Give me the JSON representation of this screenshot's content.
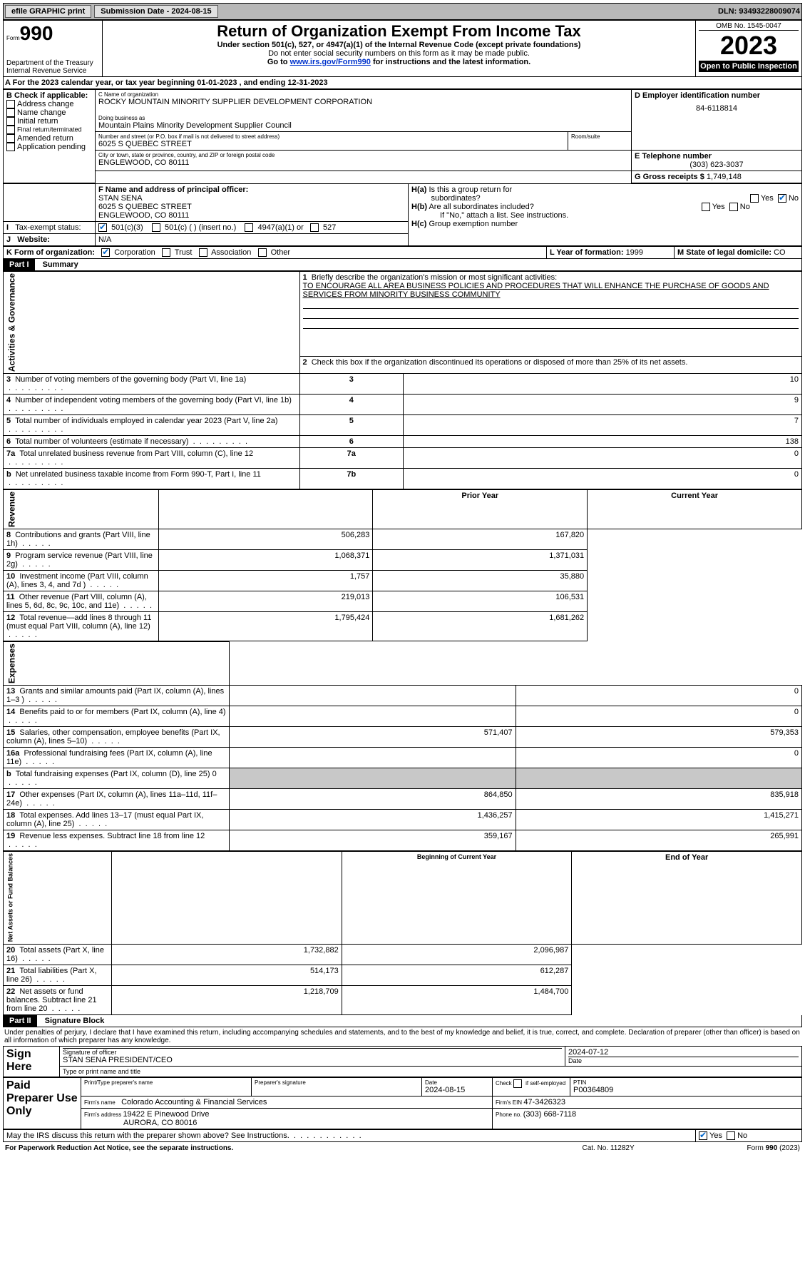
{
  "topbar": {
    "efile": "efile GRAPHIC print",
    "submission_label": "Submission Date - ",
    "submission_date": "2024-08-15",
    "dln_label": "DLN: ",
    "dln": "93493228009074"
  },
  "header": {
    "form_label": "Form",
    "form_num": "990",
    "dept": "Department of the Treasury\nInternal Revenue Service",
    "title": "Return of Organization Exempt From Income Tax",
    "sub1": "Under section 501(c), 527, or 4947(a)(1) of the Internal Revenue Code (except private foundations)",
    "sub2": "Do not enter social security numbers on this form as it may be made public.",
    "sub3_pre": "Go to ",
    "sub3_link": "www.irs.gov/Form990",
    "sub3_post": " for instructions and the latest information.",
    "omb": "OMB No. 1545-0047",
    "year": "2023",
    "open": "Open to Public Inspection"
  },
  "A": {
    "text": "For the 2023 calendar year, or tax year beginning ",
    "begin": "01-01-2023",
    "mid": " , and ending ",
    "end": "12-31-2023"
  },
  "B": {
    "label": "B Check if applicable:",
    "opts": [
      "Address change",
      "Name change",
      "Initial return",
      "Final return/terminated",
      "Amended return",
      "Application pending"
    ]
  },
  "C": {
    "name_label": "C Name of organization",
    "name": "ROCKY MOUNTAIN MINORITY SUPPLIER DEVELOPMENT CORPORATION",
    "dba_label": "Doing business as",
    "dba": "Mountain Plains Minority Development Supplier Council",
    "street_label": "Number and street (or P.O. box if mail is not delivered to street address)",
    "street": "6025 S QUEBEC STREET",
    "room_label": "Room/suite",
    "city_label": "City or town, state or province, country, and ZIP or foreign postal code",
    "city": "ENGLEWOOD, CO  80111"
  },
  "D": {
    "label": "D Employer identification number",
    "val": "84-6118814"
  },
  "E": {
    "label": "E Telephone number",
    "val": "(303) 623-3037"
  },
  "G": {
    "label": "G Gross receipts $ ",
    "val": "1,749,148"
  },
  "F": {
    "label": "F  Name and address of principal officer:",
    "name": "STAN SENA",
    "addr1": "6025 S QUEBEC STREET",
    "addr2": "ENGLEWOOD, CO  80111"
  },
  "H": {
    "a_label": "H(a)  Is this a group return for subordinates?",
    "b_label": "H(b)  Are all subordinates included?",
    "note": "If \"No,\" attach a list. See instructions.",
    "c_label": "H(c)  Group exemption number  ",
    "yes": "Yes",
    "no": "No"
  },
  "I": {
    "label": "Tax-exempt status:",
    "o1": "501(c)(3)",
    "o2": "501(c) (   ) (insert no.)",
    "o3": "4947(a)(1) or",
    "o4": "527"
  },
  "J": {
    "label": "Website:",
    "val": "N/A"
  },
  "K": {
    "label": "K Form of organization:",
    "o1": "Corporation",
    "o2": "Trust",
    "o3": "Association",
    "o4": "Other"
  },
  "L": {
    "label": "L Year of formation: ",
    "val": "1999"
  },
  "M": {
    "label": "M State of legal domicile: ",
    "val": "CO"
  },
  "part1": {
    "bar": "Part I",
    "title": "Summary",
    "l1_label": "Briefly describe the organization's mission or most significant activities:",
    "l1_text": "TO ENCOURAGE ALL AREA BUSINESS POLICIES AND PROCEDURES THAT WILL ENHANCE THE PURCHASE OF GOODS AND SERVICES FROM MINORITY BUSINESS COMMUNITY",
    "l2": "Check this box        if the organization discontinued its operations or disposed of more than 25% of its net assets.",
    "left_label": "Activities & Governance",
    "rows_ag": [
      {
        "n": "3",
        "t": "Number of voting members of the governing body (Part VI, line 1a)",
        "box": "3",
        "v": "10"
      },
      {
        "n": "4",
        "t": "Number of independent voting members of the governing body (Part VI, line 1b)",
        "box": "4",
        "v": "9"
      },
      {
        "n": "5",
        "t": "Total number of individuals employed in calendar year 2023 (Part V, line 2a)",
        "box": "5",
        "v": "7"
      },
      {
        "n": "6",
        "t": "Total number of volunteers (estimate if necessary)",
        "box": "6",
        "v": "138"
      },
      {
        "n": "7a",
        "t": "Total unrelated business revenue from Part VIII, column (C), line 12",
        "box": "7a",
        "v": "0"
      },
      {
        "n": "b",
        "t": "Net unrelated business taxable income from Form 990-T, Part I, line 11",
        "box": "7b",
        "v": "0"
      }
    ],
    "hdr_prior": "Prior Year",
    "hdr_curr": "Current Year",
    "rev_label": "Revenue",
    "rows_rev": [
      {
        "n": "8",
        "t": "Contributions and grants (Part VIII, line 1h)",
        "p": "506,283",
        "c": "167,820"
      },
      {
        "n": "9",
        "t": "Program service revenue (Part VIII, line 2g)",
        "p": "1,068,371",
        "c": "1,371,031"
      },
      {
        "n": "10",
        "t": "Investment income (Part VIII, column (A), lines 3, 4, and 7d )",
        "p": "1,757",
        "c": "35,880"
      },
      {
        "n": "11",
        "t": "Other revenue (Part VIII, column (A), lines 5, 6d, 8c, 9c, 10c, and 11e)",
        "p": "219,013",
        "c": "106,531"
      },
      {
        "n": "12",
        "t": "Total revenue—add lines 8 through 11 (must equal Part VIII, column (A), line 12)",
        "p": "1,795,424",
        "c": "1,681,262"
      }
    ],
    "exp_label": "Expenses",
    "rows_exp": [
      {
        "n": "13",
        "t": "Grants and similar amounts paid (Part IX, column (A), lines 1–3 )",
        "p": "",
        "c": "0"
      },
      {
        "n": "14",
        "t": "Benefits paid to or for members (Part IX, column (A), line 4)",
        "p": "",
        "c": "0"
      },
      {
        "n": "15",
        "t": "Salaries, other compensation, employee benefits (Part IX, column (A), lines 5–10)",
        "p": "571,407",
        "c": "579,353"
      },
      {
        "n": "16a",
        "t": "Professional fundraising fees (Part IX, column (A), line 11e)",
        "p": "",
        "c": "0"
      },
      {
        "n": "b",
        "t": "Total fundraising expenses (Part IX, column (D), line 25) 0",
        "p": "SHADE",
        "c": "SHADE"
      },
      {
        "n": "17",
        "t": "Other expenses (Part IX, column (A), lines 11a–11d, 11f–24e)",
        "p": "864,850",
        "c": "835,918"
      },
      {
        "n": "18",
        "t": "Total expenses. Add lines 13–17 (must equal Part IX, column (A), line 25)",
        "p": "1,436,257",
        "c": "1,415,271"
      },
      {
        "n": "19",
        "t": "Revenue less expenses. Subtract line 18 from line 12",
        "p": "359,167",
        "c": "265,991"
      }
    ],
    "na_label": "Net Assets or Fund Balances",
    "hdr_beg": "Beginning of Current Year",
    "hdr_end": "End of Year",
    "rows_na": [
      {
        "n": "20",
        "t": "Total assets (Part X, line 16)",
        "p": "1,732,882",
        "c": "2,096,987"
      },
      {
        "n": "21",
        "t": "Total liabilities (Part X, line 26)",
        "p": "514,173",
        "c": "612,287"
      },
      {
        "n": "22",
        "t": "Net assets or fund balances. Subtract line 21 from line 20",
        "p": "1,218,709",
        "c": "1,484,700"
      }
    ]
  },
  "part2": {
    "bar": "Part II",
    "title": "Signature Block",
    "decl": "Under penalties of perjury, I declare that I have examined this return, including accompanying schedules and statements, and to the best of my knowledge and belief, it is true, correct, and complete. Declaration of preparer (other than officer) is based on all information of which preparer has any knowledge.",
    "sign_here": "Sign Here",
    "sig_label": "Signature of officer",
    "sig_name": "STAN SENA  PRESIDENT/CEO",
    "sig_title_label": "Type or print name and title",
    "date_label": "Date",
    "date": "2024-07-12",
    "paid": "Paid Preparer Use Only",
    "p_name_label": "Print/Type preparer's name",
    "p_sig_label": "Preparer's signature",
    "p_date_label": "Date",
    "p_date": "2024-08-15",
    "p_check_label": "Check         if self-employed",
    "ptin_label": "PTIN",
    "ptin": "P00364809",
    "firm_name_label": "Firm's name   ",
    "firm_name": "Colorado Accounting & Financial Services",
    "firm_ein_label": "Firm's EIN  ",
    "firm_ein": "47-3426323",
    "firm_addr_label": "Firm's address ",
    "firm_addr1": "19422 E Pinewood Drive",
    "firm_addr2": "AURORA, CO  80016",
    "phone_label": "Phone no. ",
    "phone": "(303) 668-7118",
    "discuss": "May the IRS discuss this return with the preparer shown above? See Instructions.",
    "yes": "Yes",
    "no": "No"
  },
  "footer": {
    "left": "For Paperwork Reduction Act Notice, see the separate instructions.",
    "mid": "Cat. No. 11282Y",
    "right": "Form 990 (2023)"
  }
}
